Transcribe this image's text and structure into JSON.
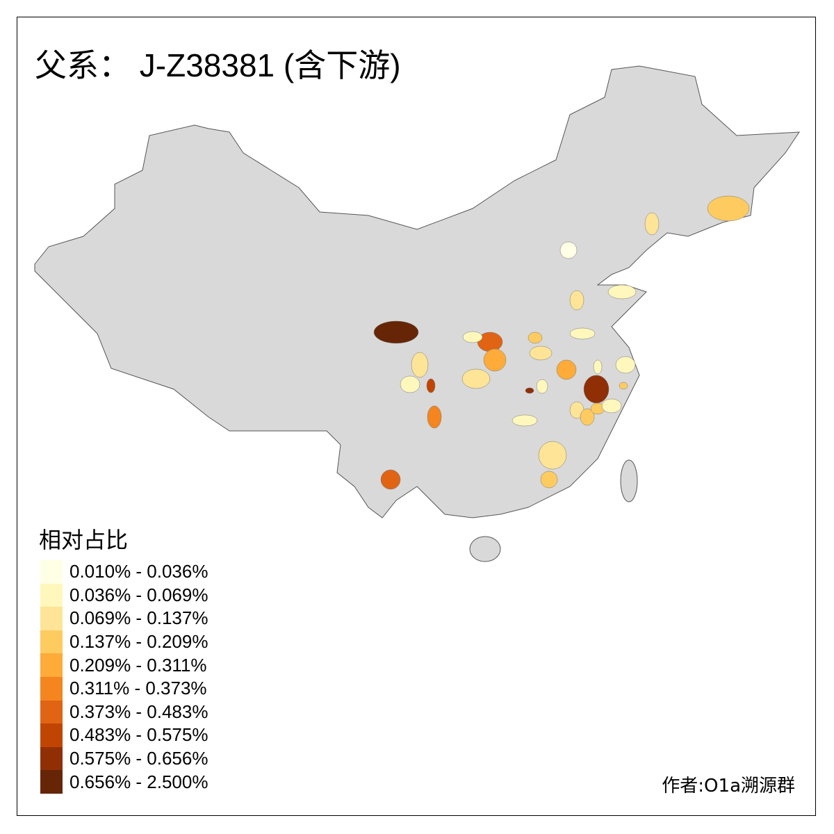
{
  "title": "父系： J-Z38381 (含下游)",
  "legend": {
    "title": "相对占比",
    "items": [
      {
        "label": "0.010% - 0.036%",
        "color": "#ffffe5"
      },
      {
        "label": "0.036% - 0.069%",
        "color": "#fff7bc"
      },
      {
        "label": "0.069% - 0.137%",
        "color": "#fee496"
      },
      {
        "label": "0.137% - 0.209%",
        "color": "#fecb61"
      },
      {
        "label": "0.209% - 0.311%",
        "color": "#feab39"
      },
      {
        "label": "0.311% - 0.373%",
        "color": "#f4851f"
      },
      {
        "label": "0.373% - 0.483%",
        "color": "#e06414"
      },
      {
        "label": "0.483% - 0.575%",
        "color": "#c14502"
      },
      {
        "label": "0.575% - 0.656%",
        "color": "#902f06"
      },
      {
        "label": "0.656% - 2.500%",
        "color": "#662506"
      }
    ]
  },
  "base_color": "#d9d9d9",
  "author": "作者:O1a溯源群"
}
